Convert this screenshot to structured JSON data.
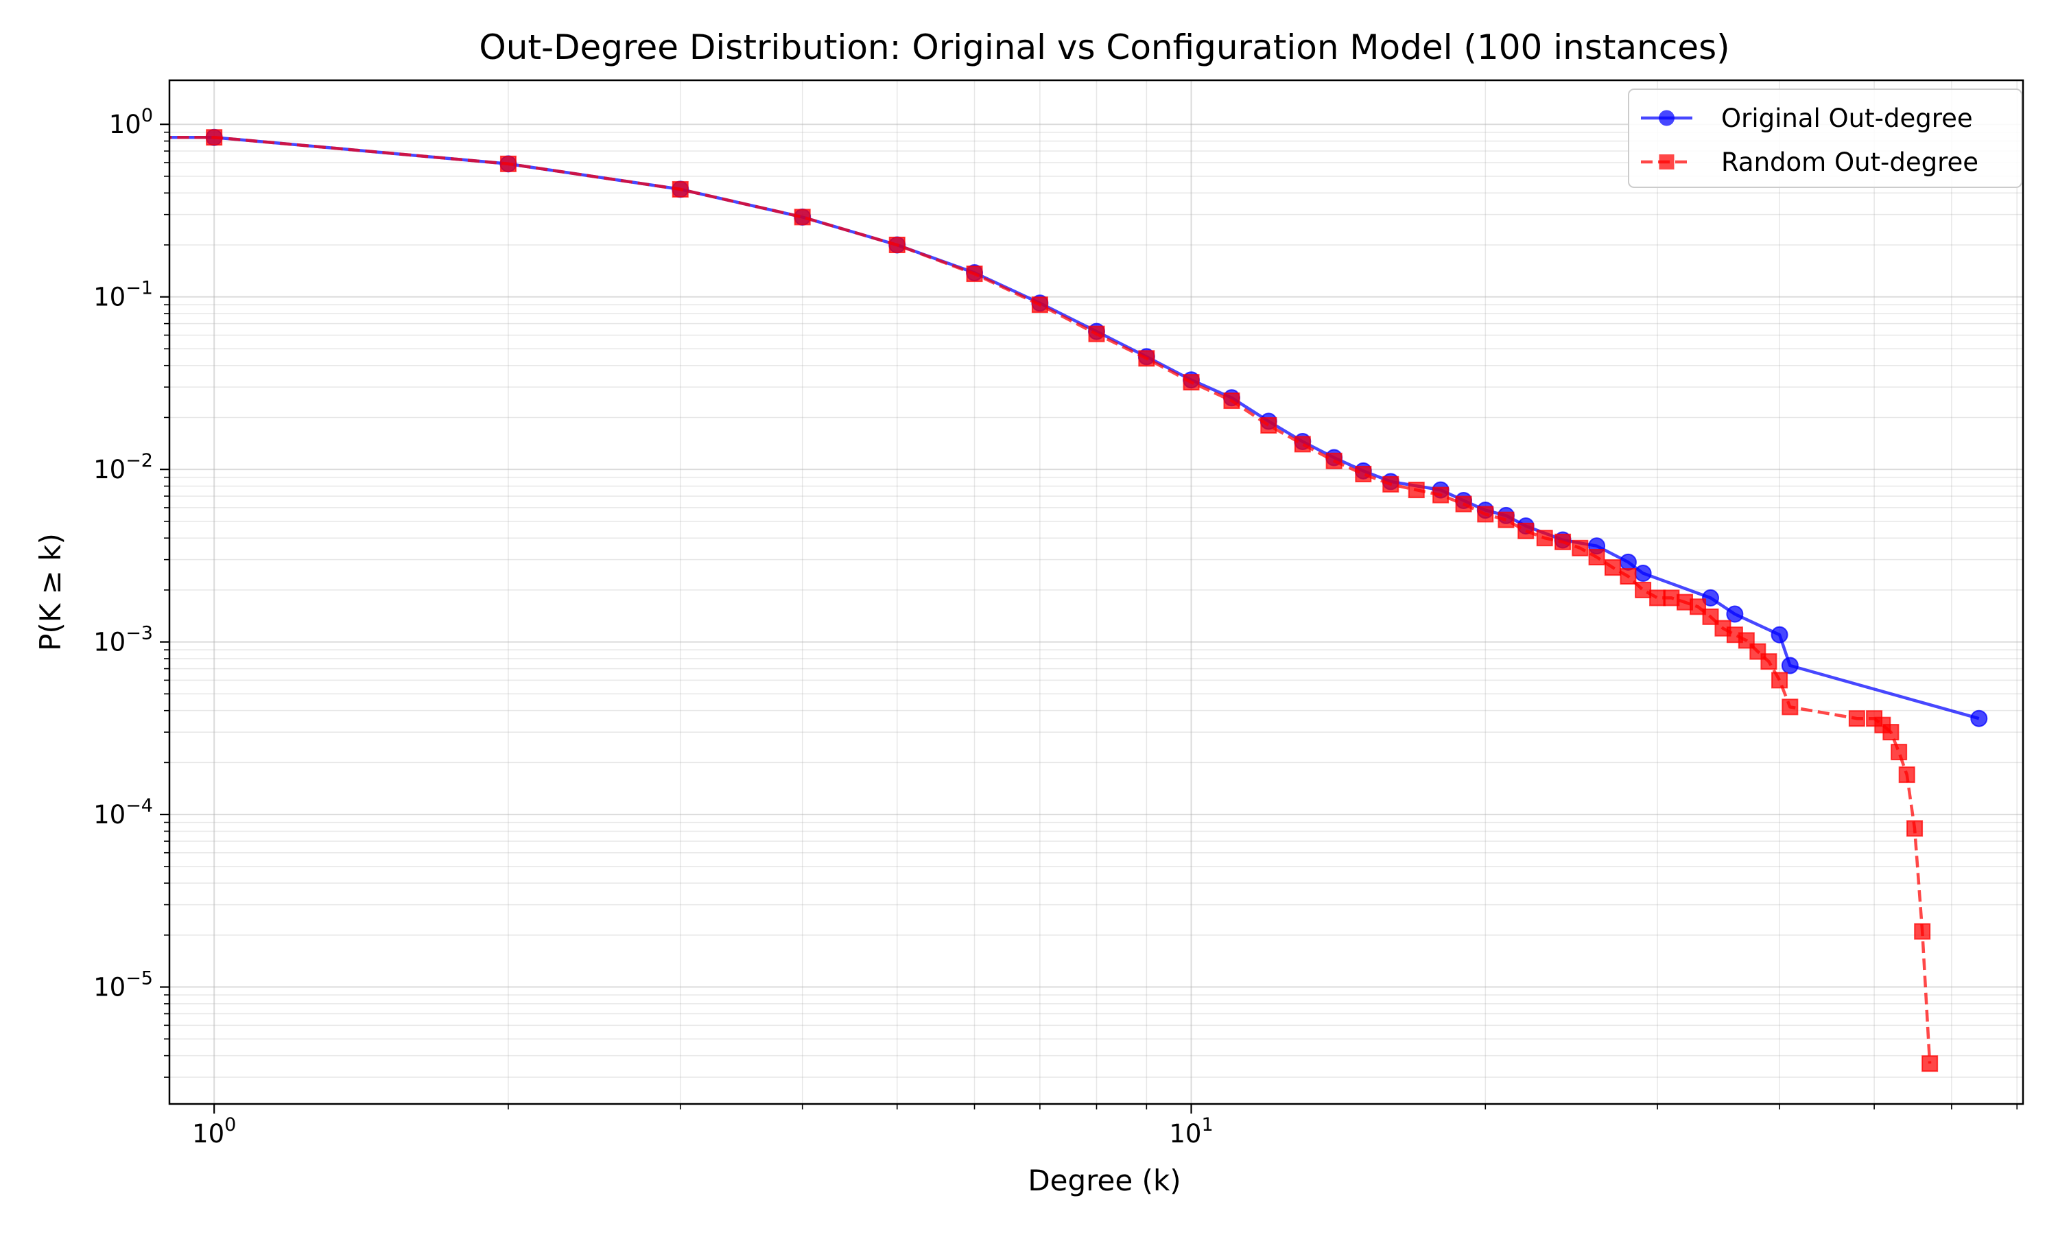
{
  "chart_data": {
    "type": "line",
    "title": "Out-Degree Distribution: Original vs Configuration Model (100 instances)",
    "xlabel": "Degree (k)",
    "ylabel": "P(K ≥ k)",
    "xscale": "log",
    "yscale": "log",
    "xlim": [
      0.9,
      71
    ],
    "ylim": [
      2.1e-06,
      1.8
    ],
    "xticks": [
      {
        "base": "10",
        "exp": "0",
        "value": 1
      },
      {
        "base": "10",
        "exp": "1",
        "value": 10
      }
    ],
    "yticks": [
      {
        "base": "10",
        "exp": "0",
        "value": 1
      },
      {
        "base": "10",
        "exp": "−1",
        "value": 0.1
      },
      {
        "base": "10",
        "exp": "−2",
        "value": 0.01
      },
      {
        "base": "10",
        "exp": "−3",
        "value": 0.001
      },
      {
        "base": "10",
        "exp": "−4",
        "value": 0.0001
      },
      {
        "base": "10",
        "exp": "−5",
        "value": 1e-05
      }
    ],
    "grid": true,
    "legend_position": "top-right",
    "series": [
      {
        "name": "Original Out-degree",
        "color": "#0000ff",
        "marker": "circle",
        "linestyle": "solid",
        "points": [
          [
            0.5,
            0.84
          ],
          [
            1,
            0.84
          ],
          [
            2,
            0.59
          ],
          [
            3,
            0.42
          ],
          [
            4,
            0.29
          ],
          [
            5,
            0.2
          ],
          [
            6,
            0.138
          ],
          [
            7,
            0.092
          ],
          [
            8,
            0.063
          ],
          [
            9,
            0.045
          ],
          [
            10,
            0.033
          ],
          [
            11,
            0.026
          ],
          [
            12,
            0.019
          ],
          [
            13,
            0.0145
          ],
          [
            14,
            0.0117
          ],
          [
            15,
            0.0098
          ],
          [
            16,
            0.0085
          ],
          [
            18,
            0.0076
          ],
          [
            19,
            0.0066
          ],
          [
            20,
            0.0058
          ],
          [
            21,
            0.0054
          ],
          [
            22,
            0.0047
          ],
          [
            24,
            0.0039
          ],
          [
            26,
            0.0036
          ],
          [
            28,
            0.0029
          ],
          [
            29,
            0.0025
          ],
          [
            34,
            0.0018
          ],
          [
            36,
            0.00145
          ],
          [
            40,
            0.0011
          ],
          [
            41,
            0.00073
          ],
          [
            64,
            0.00036
          ]
        ]
      },
      {
        "name": "Random Out-degree",
        "color": "#ff0000",
        "marker": "square",
        "linestyle": "dashed",
        "points": [
          [
            0.5,
            0.84
          ],
          [
            1,
            0.84
          ],
          [
            2,
            0.59
          ],
          [
            3,
            0.42
          ],
          [
            4,
            0.29
          ],
          [
            5,
            0.2
          ],
          [
            6,
            0.136
          ],
          [
            7,
            0.09
          ],
          [
            8,
            0.061
          ],
          [
            9,
            0.044
          ],
          [
            10,
            0.032
          ],
          [
            11,
            0.025
          ],
          [
            12,
            0.018
          ],
          [
            13,
            0.014
          ],
          [
            14,
            0.0112
          ],
          [
            15,
            0.0094
          ],
          [
            16,
            0.0082
          ],
          [
            17,
            0.0076
          ],
          [
            18,
            0.0071
          ],
          [
            19,
            0.0063
          ],
          [
            20,
            0.0055
          ],
          [
            21,
            0.0051
          ],
          [
            22,
            0.0044
          ],
          [
            23,
            0.004
          ],
          [
            24,
            0.0038
          ],
          [
            25,
            0.0035
          ],
          [
            26,
            0.0031
          ],
          [
            27,
            0.0027
          ],
          [
            28,
            0.0024
          ],
          [
            29,
            0.002
          ],
          [
            30,
            0.0018
          ],
          [
            31,
            0.0018
          ],
          [
            32,
            0.0017
          ],
          [
            33,
            0.0016
          ],
          [
            34,
            0.0014
          ],
          [
            35,
            0.0012
          ],
          [
            36,
            0.0011
          ],
          [
            37,
            0.00102
          ],
          [
            38,
            0.00088
          ],
          [
            39,
            0.00077
          ],
          [
            40,
            0.0006
          ],
          [
            41,
            0.00042
          ],
          [
            48,
            0.00036
          ],
          [
            50,
            0.00036
          ],
          [
            51,
            0.00033
          ],
          [
            52,
            0.0003
          ],
          [
            53,
            0.00023
          ],
          [
            54,
            0.00017
          ],
          [
            55,
            8.3e-05
          ],
          [
            56,
            2.1e-05
          ],
          [
            57,
            3.6e-06
          ]
        ]
      }
    ]
  }
}
